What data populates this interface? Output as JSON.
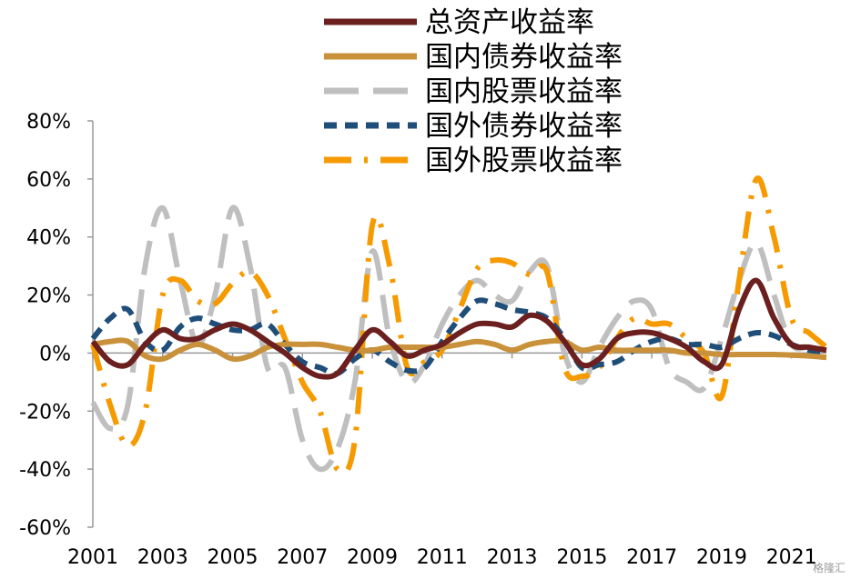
{
  "chart_data": {
    "type": "line",
    "title": "",
    "xlabel": "",
    "ylabel": "",
    "x_ticks": [
      "2001",
      "2003",
      "2005",
      "2007",
      "2009",
      "2011",
      "2013",
      "2015",
      "2017",
      "2019",
      "2021"
    ],
    "y_ticks": [
      "80%",
      "60%",
      "40%",
      "20%",
      "0%",
      "-20%",
      "-40%",
      "-60%"
    ],
    "xlim": [
      2001,
      2022
    ],
    "ylim": [
      -60,
      80
    ],
    "legend_position": "top-right",
    "grid": false,
    "x": [
      2001,
      2001.5,
      2002,
      2002.5,
      2003,
      2003.5,
      2004,
      2004.5,
      2005,
      2005.5,
      2006,
      2006.5,
      2007,
      2007.5,
      2008,
      2008.5,
      2009,
      2009.5,
      2010,
      2010.5,
      2011,
      2011.5,
      2012,
      2012.5,
      2013,
      2013.5,
      2014,
      2014.5,
      2015,
      2015.5,
      2016,
      2016.5,
      2017,
      2017.5,
      2018,
      2018.5,
      2019,
      2019.5,
      2020,
      2020.5,
      2021,
      2021.5,
      2022
    ],
    "series": [
      {
        "name": "总资产收益率",
        "color": "#6B1F1F",
        "dash": "solid",
        "values": [
          4,
          -3,
          -4,
          3,
          8,
          5,
          5,
          8,
          10,
          8,
          4,
          0,
          -5,
          -8,
          -7,
          1,
          8,
          4,
          -1,
          1,
          3,
          7,
          10,
          10,
          9,
          13,
          11,
          4,
          -4,
          -2,
          5,
          7,
          7,
          5,
          2,
          -3,
          -4,
          15,
          25,
          12,
          3,
          2,
          1
        ]
      },
      {
        "name": "国内债券收益率",
        "color": "#C8913A",
        "dash": "solid",
        "values": [
          3,
          4,
          4,
          -1,
          -2,
          1,
          3,
          1,
          -2,
          -1,
          2,
          3,
          3,
          3,
          2,
          1,
          1,
          2,
          2,
          2,
          2,
          3,
          4,
          3,
          1,
          3,
          4,
          4,
          1,
          2,
          1,
          1,
          1,
          1,
          0,
          0,
          -0.5,
          -0.5,
          -0.5,
          -0.5,
          -0.7,
          -1,
          -1.5
        ]
      },
      {
        "name": "国内股票收益率",
        "color": "#BFBFBF",
        "dash": "longdash",
        "values": [
          -17,
          -26,
          -18,
          30,
          50,
          25,
          3,
          20,
          50,
          30,
          -5,
          -5,
          -30,
          -40,
          -33,
          -10,
          35,
          5,
          -10,
          -4,
          10,
          20,
          25,
          20,
          18,
          28,
          30,
          0,
          -10,
          2,
          12,
          18,
          15,
          -5,
          -10,
          -12,
          5,
          25,
          38,
          20,
          3,
          2,
          1
        ]
      },
      {
        "name": "国外债券收益率",
        "color": "#1F4E79",
        "dash": "shortdash",
        "values": [
          5,
          12,
          15,
          4,
          1,
          9,
          12,
          10,
          8,
          8,
          10,
          3,
          -3,
          -5,
          -7,
          -2,
          1,
          -3,
          -6,
          -5,
          4,
          12,
          18,
          17,
          15,
          14,
          12,
          5,
          -5,
          -4,
          -3,
          1,
          4,
          5,
          3,
          3,
          2,
          5,
          7,
          6,
          3,
          1,
          0
        ]
      },
      {
        "name": "国外股票收益率",
        "color": "#F59A00",
        "dash": "dashdot",
        "values": [
          3,
          -18,
          -32,
          -20,
          20,
          25,
          18,
          17,
          24,
          28,
          20,
          5,
          -10,
          -20,
          -40,
          -30,
          44,
          30,
          -5,
          -3,
          1,
          15,
          29,
          32,
          31,
          27,
          28,
          -5,
          -8,
          -5,
          5,
          12,
          10,
          10,
          5,
          0,
          -15,
          25,
          60,
          40,
          12,
          7,
          2
        ]
      }
    ]
  },
  "watermark": "格隆汇"
}
